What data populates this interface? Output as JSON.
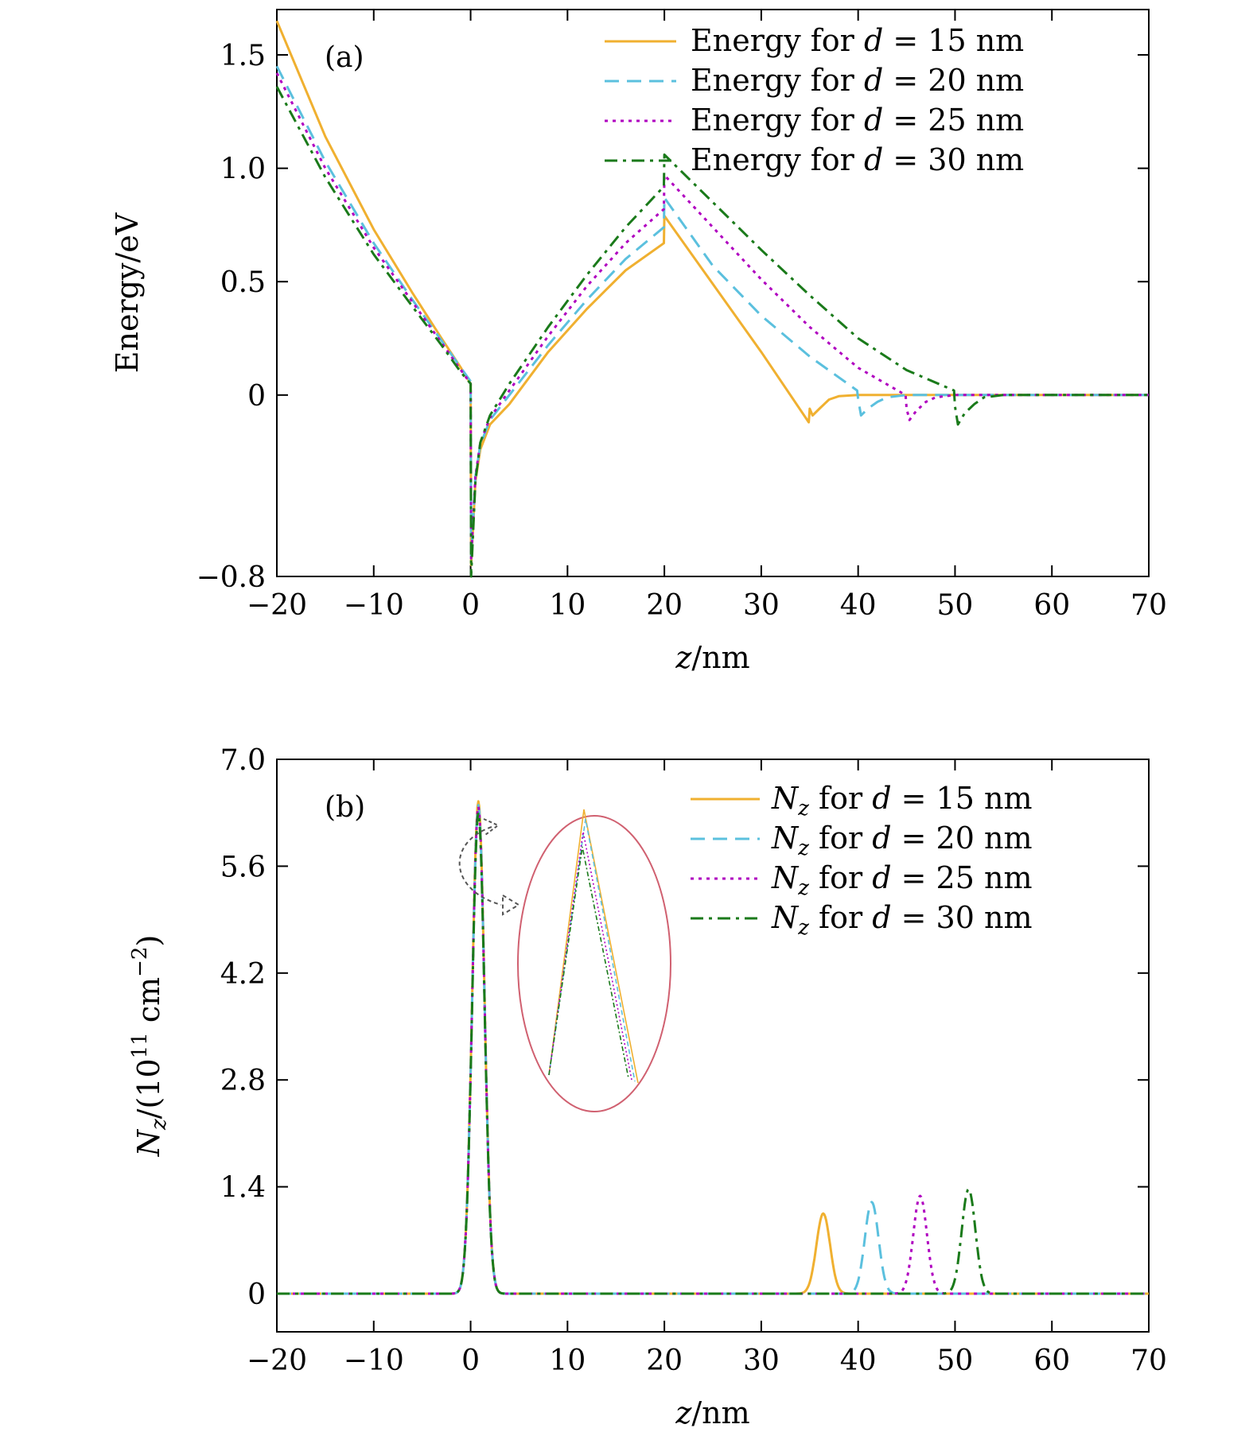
{
  "chart_data": [
    {
      "type": "line",
      "panel_label": "(a)",
      "xlabel_var": "z",
      "xlabel_unit": "/nm",
      "ylabel": "Energy/eV",
      "xlim": [
        -20,
        70
      ],
      "ylim": [
        -0.8,
        1.7
      ],
      "x_ticks": [
        {
          "value": -20,
          "label": "−20"
        },
        {
          "value": -10,
          "label": "−10"
        },
        {
          "value": 0,
          "label": "0"
        },
        {
          "value": 10,
          "label": "10"
        },
        {
          "value": 20,
          "label": "20"
        },
        {
          "value": 30,
          "label": "30"
        },
        {
          "value": 40,
          "label": "40"
        },
        {
          "value": 50,
          "label": "50"
        },
        {
          "value": 60,
          "label": "60"
        },
        {
          "value": 70,
          "label": "70"
        }
      ],
      "y_ticks": [
        {
          "value": -0.8,
          "label": "−0.8"
        },
        {
          "value": 0,
          "label": "0"
        },
        {
          "value": 0.5,
          "label": "0.5"
        },
        {
          "value": 1.0,
          "label": "1.0"
        },
        {
          "value": 1.5,
          "label": "1.5"
        }
      ],
      "grid": false,
      "legend_position": "top-right",
      "series": [
        {
          "name_prefix": "Energy for ",
          "name_var": "d",
          "name_suffix": " = 15 nm",
          "color": "#f0b030",
          "dash": "solid",
          "points": [
            [
              -20,
              1.65
            ],
            [
              -15,
              1.14
            ],
            [
              -10,
              0.73
            ],
            [
              -6,
              0.45
            ],
            [
              -3,
              0.25
            ],
            [
              -1,
              0.12
            ],
            [
              0,
              0.05
            ],
            [
              0.05,
              -0.75
            ],
            [
              0.5,
              -0.38
            ],
            [
              1,
              -0.24
            ],
            [
              2,
              -0.13
            ],
            [
              4,
              -0.04
            ],
            [
              8,
              0.19
            ],
            [
              12,
              0.38
            ],
            [
              16,
              0.55
            ],
            [
              19.95,
              0.67
            ],
            [
              20,
              0.79
            ],
            [
              25,
              0.49
            ],
            [
              30,
              0.19
            ],
            [
              34.9,
              -0.12
            ],
            [
              35,
              -0.06
            ],
            [
              35.3,
              -0.09
            ],
            [
              36,
              -0.06
            ],
            [
              37,
              -0.02
            ],
            [
              38,
              -0.005
            ],
            [
              40,
              0
            ],
            [
              70,
              0
            ]
          ]
        },
        {
          "name_prefix": "Energy for ",
          "name_var": "d",
          "name_suffix": " = 20 nm",
          "color": "#5bc0de",
          "dash": "18,10",
          "points": [
            [
              -20,
              1.45
            ],
            [
              -15,
              1.03
            ],
            [
              -10,
              0.67
            ],
            [
              -6,
              0.42
            ],
            [
              -3,
              0.24
            ],
            [
              -1,
              0.12
            ],
            [
              0,
              0.06
            ],
            [
              0.05,
              -0.72
            ],
            [
              0.5,
              -0.36
            ],
            [
              1,
              -0.22
            ],
            [
              2,
              -0.11
            ],
            [
              4,
              0.0
            ],
            [
              8,
              0.22
            ],
            [
              12,
              0.42
            ],
            [
              16,
              0.6
            ],
            [
              19.95,
              0.74
            ],
            [
              20,
              0.87
            ],
            [
              25,
              0.57
            ],
            [
              30,
              0.35
            ],
            [
              35,
              0.17
            ],
            [
              39.9,
              0.02
            ],
            [
              40,
              -0.02
            ],
            [
              40.3,
              -0.09
            ],
            [
              41,
              -0.06
            ],
            [
              42,
              -0.03
            ],
            [
              43,
              -0.01
            ],
            [
              45,
              0
            ],
            [
              70,
              0
            ]
          ]
        },
        {
          "name_prefix": "Energy for ",
          "name_var": "d",
          "name_suffix": " = 25 nm",
          "color": "#b000c0",
          "dash": "4,6",
          "points": [
            [
              -20,
              1.42
            ],
            [
              -15,
              1.0
            ],
            [
              -10,
              0.65
            ],
            [
              -6,
              0.41
            ],
            [
              -3,
              0.23
            ],
            [
              -1,
              0.11
            ],
            [
              0,
              0.05
            ],
            [
              0.05,
              -0.72
            ],
            [
              0.5,
              -0.36
            ],
            [
              1,
              -0.21
            ],
            [
              2,
              -0.1
            ],
            [
              4,
              0.02
            ],
            [
              8,
              0.26
            ],
            [
              12,
              0.48
            ],
            [
              16,
              0.67
            ],
            [
              19.95,
              0.82
            ],
            [
              20,
              0.97
            ],
            [
              25,
              0.74
            ],
            [
              30,
              0.51
            ],
            [
              35,
              0.3
            ],
            [
              40,
              0.12
            ],
            [
              44.9,
              0.0
            ],
            [
              45,
              -0.06
            ],
            [
              45.3,
              -0.11
            ],
            [
              46,
              -0.07
            ],
            [
              47,
              -0.03
            ],
            [
              48,
              -0.01
            ],
            [
              50,
              0
            ],
            [
              70,
              0
            ]
          ]
        },
        {
          "name_prefix": "Energy for ",
          "name_var": "d",
          "name_suffix": " = 30 nm",
          "color": "#1a7a1a",
          "dash": "16,7,4,7",
          "points": [
            [
              -20,
              1.36
            ],
            [
              -15,
              0.96
            ],
            [
              -10,
              0.62
            ],
            [
              -6,
              0.39
            ],
            [
              -3,
              0.22
            ],
            [
              -1,
              0.1
            ],
            [
              0,
              0.05
            ],
            [
              0.05,
              -0.8
            ],
            [
              0.5,
              -0.38
            ],
            [
              1,
              -0.21
            ],
            [
              2,
              -0.09
            ],
            [
              4,
              0.05
            ],
            [
              8,
              0.3
            ],
            [
              12,
              0.53
            ],
            [
              16,
              0.74
            ],
            [
              19.95,
              0.92
            ],
            [
              20,
              1.06
            ],
            [
              25,
              0.85
            ],
            [
              30,
              0.64
            ],
            [
              35,
              0.44
            ],
            [
              40,
              0.25
            ],
            [
              45,
              0.11
            ],
            [
              49.9,
              0.02
            ],
            [
              50,
              -0.05
            ],
            [
              50.3,
              -0.13
            ],
            [
              51,
              -0.08
            ],
            [
              52,
              -0.04
            ],
            [
              53,
              -0.01
            ],
            [
              55,
              0
            ],
            [
              70,
              0
            ]
          ]
        }
      ]
    },
    {
      "type": "line",
      "panel_label": "(b)",
      "xlabel_var": "z",
      "xlabel_unit": "/nm",
      "ylabel_var": "N",
      "ylabel_sub": "z",
      "ylabel_unit_open": "/(10",
      "ylabel_unit_exp": "11",
      "ylabel_unit_mid": " cm",
      "ylabel_unit_exp2": "−2",
      "ylabel_unit_close": ")",
      "xlim": [
        -20,
        70
      ],
      "ylim": [
        -0.5,
        7.0
      ],
      "x_ticks": [
        {
          "value": -20,
          "label": "−20"
        },
        {
          "value": -10,
          "label": "−10"
        },
        {
          "value": 0,
          "label": "0"
        },
        {
          "value": 10,
          "label": "10"
        },
        {
          "value": 20,
          "label": "20"
        },
        {
          "value": 30,
          "label": "30"
        },
        {
          "value": 40,
          "label": "40"
        },
        {
          "value": 50,
          "label": "50"
        },
        {
          "value": 60,
          "label": "60"
        },
        {
          "value": 70,
          "label": "70"
        }
      ],
      "y_ticks": [
        {
          "value": 0,
          "label": "0"
        },
        {
          "value": 1.4,
          "label": "1.4"
        },
        {
          "value": 2.8,
          "label": "2.8"
        },
        {
          "value": 4.2,
          "label": "4.2"
        },
        {
          "value": 5.6,
          "label": "5.6"
        },
        {
          "value": 7.0,
          "label": "7.0"
        }
      ],
      "grid": false,
      "legend_position": "top-right",
      "series": [
        {
          "name_var": "N",
          "name_sub": "z",
          "name_mid": " for ",
          "name_var2": "d",
          "name_suffix": " = 15 nm",
          "color": "#f0b030",
          "dash": "solid",
          "main_peak": {
            "center": 0.8,
            "height": 6.45,
            "width": 0.9
          },
          "second_peak": {
            "center": 36.4,
            "height": 1.05,
            "width": 1.0
          }
        },
        {
          "name_var": "N",
          "name_sub": "z",
          "name_mid": " for ",
          "name_var2": "d",
          "name_suffix": " = 20 nm",
          "color": "#5bc0de",
          "dash": "18,10",
          "main_peak": {
            "center": 0.8,
            "height": 6.4,
            "width": 0.9
          },
          "second_peak": {
            "center": 41.4,
            "height": 1.2,
            "width": 1.0
          }
        },
        {
          "name_var": "N",
          "name_sub": "z",
          "name_mid": " for ",
          "name_var2": "d",
          "name_suffix": " = 25 nm",
          "color": "#b000c0",
          "dash": "4,6",
          "main_peak": {
            "center": 0.8,
            "height": 6.38,
            "width": 0.9
          },
          "second_peak": {
            "center": 46.4,
            "height": 1.28,
            "width": 1.0
          }
        },
        {
          "name_var": "N",
          "name_sub": "z",
          "name_mid": " for ",
          "name_var2": "d",
          "name_suffix": " = 30 nm",
          "color": "#1a7a1a",
          "dash": "16,7,4,7",
          "main_peak": {
            "center": 0.8,
            "height": 6.3,
            "width": 0.9
          },
          "second_peak": {
            "center": 51.4,
            "height": 1.37,
            "width": 1.0
          }
        }
      ],
      "inset": {
        "type": "zoom",
        "target_x": 0.8,
        "target_y": 6.4,
        "border_color": "#d06070"
      }
    }
  ]
}
